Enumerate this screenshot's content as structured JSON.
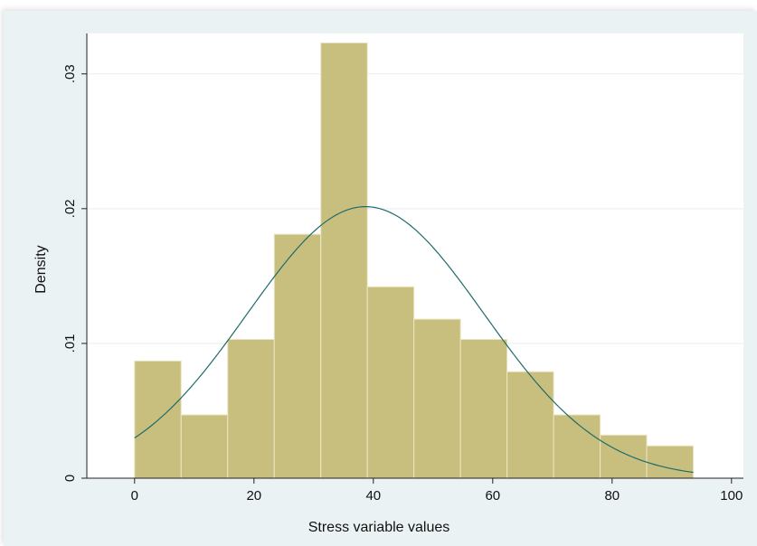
{
  "chart_data": {
    "type": "bar",
    "subtype": "histogram",
    "xlabel": "Stress variable values",
    "ylabel": "Density",
    "xlim": [
      -8,
      102
    ],
    "ylim": [
      0,
      0.033
    ],
    "x_ticks": [
      0,
      20,
      40,
      60,
      80,
      100
    ],
    "x_tick_labels": [
      "0",
      "20",
      "40",
      "60",
      "80",
      "100"
    ],
    "y_ticks": [
      0,
      0.01,
      0.02,
      0.03
    ],
    "y_tick_labels": [
      "0",
      ".01",
      ".02",
      ".03"
    ],
    "bins": [
      {
        "start": 0.0,
        "end": 7.8,
        "density": 0.0087
      },
      {
        "start": 7.8,
        "end": 15.6,
        "density": 0.0047
      },
      {
        "start": 15.6,
        "end": 23.4,
        "density": 0.0103
      },
      {
        "start": 23.4,
        "end": 31.2,
        "density": 0.0181
      },
      {
        "start": 31.2,
        "end": 39.0,
        "density": 0.0323
      },
      {
        "start": 39.0,
        "end": 46.8,
        "density": 0.0142
      },
      {
        "start": 46.8,
        "end": 54.6,
        "density": 0.0118
      },
      {
        "start": 54.6,
        "end": 62.4,
        "density": 0.0103
      },
      {
        "start": 62.4,
        "end": 70.2,
        "density": 0.0079
      },
      {
        "start": 70.2,
        "end": 78.0,
        "density": 0.0047
      },
      {
        "start": 78.0,
        "end": 85.8,
        "density": 0.0032
      },
      {
        "start": 85.8,
        "end": 93.6,
        "density": 0.0024
      }
    ],
    "normal_curve": {
      "mean": 38.7,
      "sd": 19.8
    },
    "grid": "horizontal",
    "colors": {
      "bar_fill": "#c8bf7e",
      "bar_edge": "#ebe6c4",
      "curve": "#1f6b6b",
      "background": "#eaf2f3",
      "plot_area": "#ffffff",
      "grid": "#e8eeee"
    }
  }
}
